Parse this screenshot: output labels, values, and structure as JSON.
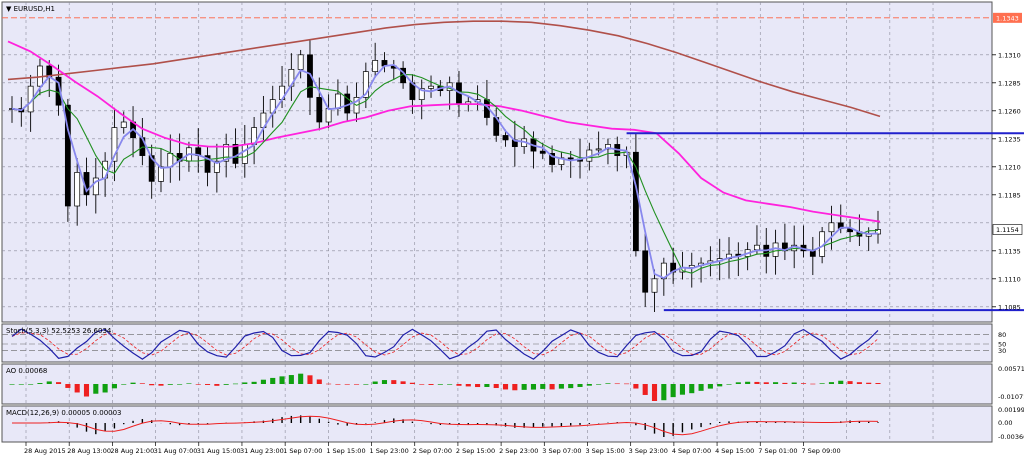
{
  "symbol_label": "▼ EURUSD,H1",
  "colors": {
    "background": "#e8e8f8",
    "grid": "#8a8a9a",
    "bull": "#ffffff",
    "bear": "#000000",
    "ma_slow": "#b0504a",
    "ma_mid": "#ff22dd",
    "ma_fast_green": "#209020",
    "ma_fast_blue": "#8888ee",
    "level_line": "#2020cc",
    "alert_line": "#ff6040",
    "ao_up": "#10a010",
    "ao_down": "#ee2020",
    "macd_hist": "#000000",
    "macd_signal": "#ee2020",
    "stoch_main": "#2020aa",
    "stoch_signal": "#ee2020",
    "price_box": "#ffffff",
    "alert_box": "#ff7050"
  },
  "chart_data": [
    {
      "type": "candlestick",
      "title": "EURUSD,H1",
      "ylim": [
        1.1075,
        1.135
      ],
      "y_ticks": [
        "1.1310",
        "1.1285",
        "1.1260",
        "1.1235",
        "1.1210",
        "1.1185",
        "1.1135",
        "1.1110",
        "1.1085"
      ],
      "current_price_label": "1.1154",
      "alert_price_label": "1.1343",
      "current_price": 1.1154,
      "alert_price": 1.1343,
      "x_labels": [
        "28 Aug 2015",
        "28 Aug 13:00",
        "28 Aug 21:00",
        "31 Aug 07:00",
        "31 Aug 15:00",
        "31 Aug 23:00",
        "1 Sep 07:00",
        "1 Sep 15:00",
        "1 Sep 23:00",
        "2 Sep 07:00",
        "2 Sep 15:00",
        "2 Sep 23:00",
        "3 Sep 07:00",
        "3 Sep 15:00",
        "3 Sep 23:00",
        "4 Sep 07:00",
        "4 Sep 15:00",
        "7 Sep 01:00",
        "7 Sep 09:00"
      ],
      "levels": [
        {
          "price": 1.124,
          "from_bar": 66,
          "to_bar": 128
        },
        {
          "price": 1.1082,
          "from_bar": 70,
          "to_bar": 112
        }
      ],
      "close_path": [
        1.1262,
        1.1259,
        1.1282,
        1.13,
        1.129,
        1.1265,
        1.1175,
        1.1205,
        1.1185,
        1.12,
        1.1215,
        1.1245,
        1.125,
        1.1236,
        1.122,
        1.1197,
        1.121,
        1.1222,
        1.1215,
        1.1227,
        1.122,
        1.1205,
        1.1215,
        1.123,
        1.1213,
        1.123,
        1.1245,
        1.1258,
        1.127,
        1.1282,
        1.1297,
        1.131,
        1.1272,
        1.125,
        1.1262,
        1.1275,
        1.1258,
        1.1272,
        1.1295,
        1.1305,
        1.13,
        1.1298,
        1.1285,
        1.127,
        1.128,
        1.1282,
        1.1278,
        1.1285,
        1.1266,
        1.1268,
        1.127,
        1.1254,
        1.1238,
        1.1234,
        1.1228,
        1.1235,
        1.1224,
        1.1222,
        1.1212,
        1.1218,
        1.1217,
        1.1215,
        1.1225,
        1.1226,
        1.123,
        1.122,
        1.1223,
        1.1135,
        1.1098,
        1.111,
        1.1124,
        1.1116,
        1.112,
        1.1122,
        1.1124,
        1.1126,
        1.1128,
        1.1132,
        1.113,
        1.1136,
        1.114,
        1.113,
        1.1142,
        1.1135,
        1.114,
        1.1135,
        1.113,
        1.1152,
        1.116,
        1.1155,
        1.1152,
        1.1148,
        1.115,
        1.1154
      ],
      "ma_slow_path": [
        1.1288,
        1.129,
        1.1293,
        1.1296,
        1.1299,
        1.1302,
        1.1306,
        1.131,
        1.1314,
        1.1318,
        1.1322,
        1.1326,
        1.133,
        1.1334,
        1.1337,
        1.1339,
        1.134,
        1.134,
        1.1339,
        1.1336,
        1.1332,
        1.1327,
        1.132,
        1.1312,
        1.1303,
        1.1294,
        1.1285,
        1.1277,
        1.127,
        1.1263,
        1.1255
      ],
      "ma_mid_path": [
        1.1322,
        1.1313,
        1.13,
        1.1286,
        1.1273,
        1.1258,
        1.1244,
        1.1236,
        1.123,
        1.1228,
        1.1228,
        1.1231,
        1.1236,
        1.124,
        1.1244,
        1.125,
        1.1254,
        1.126,
        1.1264,
        1.1265,
        1.1266,
        1.1266,
        1.1264,
        1.126,
        1.1255,
        1.125,
        1.1247,
        1.1244,
        1.1243,
        1.124,
        1.1222,
        1.12,
        1.1187,
        1.118,
        1.1177,
        1.1174,
        1.117,
        1.1167,
        1.1164,
        1.1161
      ]
    },
    {
      "type": "line",
      "title": "Stoch(5,3,3) 52.5253 26.6034",
      "y_ticks": [
        "80",
        "50",
        "30"
      ],
      "ylim": [
        0,
        100
      ]
    },
    {
      "type": "bar",
      "title": "AO 0.00068",
      "y_ticks": [
        "0.00571",
        "-0.01071"
      ]
    },
    {
      "type": "bar",
      "title": "MACD(12,26,9) 0.00005 0.00003",
      "y_ticks": [
        "0.00199",
        "0.00",
        "-0.00366"
      ]
    }
  ]
}
